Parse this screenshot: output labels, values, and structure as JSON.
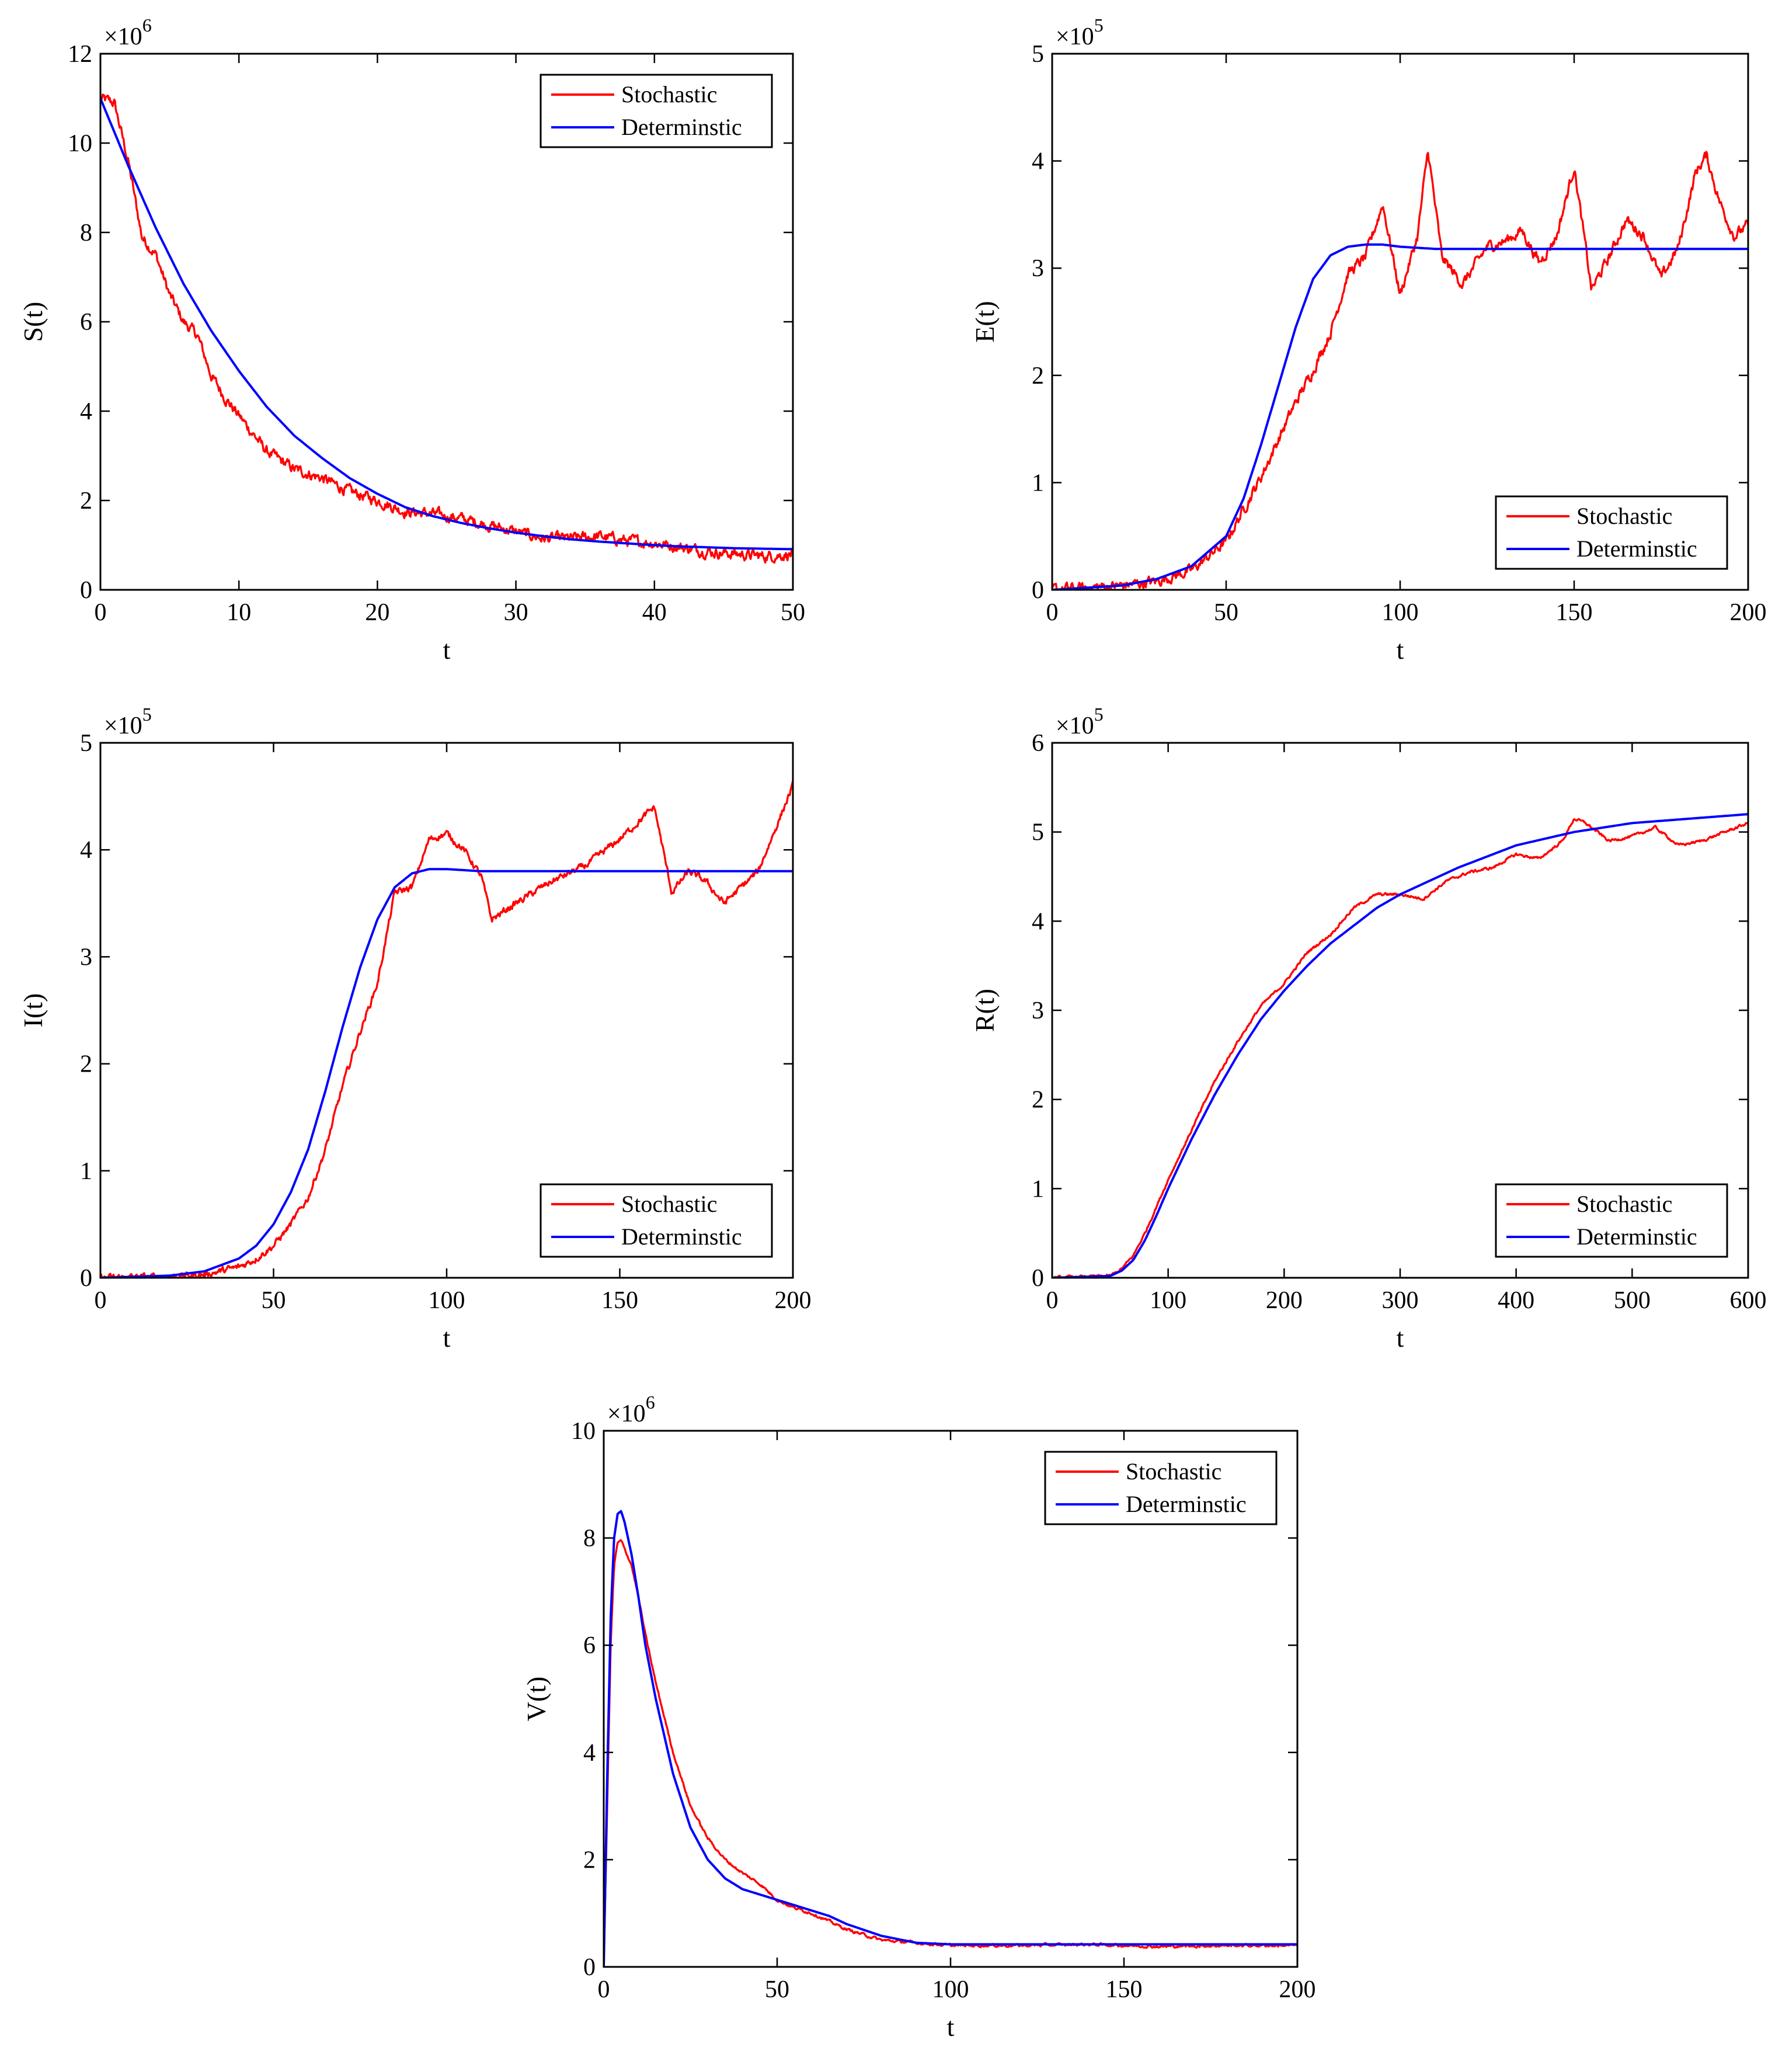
{
  "colors": {
    "stochastic": "#ff0000",
    "deterministic": "#0000ff",
    "axes": "#000000"
  },
  "chart_data": [
    {
      "type": "line",
      "id": "S",
      "xlabel": "t",
      "ylabel": "S(t)",
      "multiplier": {
        "base": "×10",
        "exp": "6"
      },
      "xlim": [
        0,
        50
      ],
      "ylim": [
        0,
        12
      ],
      "xticks": [
        0,
        10,
        20,
        30,
        40,
        50
      ],
      "yticks": [
        0,
        2,
        4,
        6,
        8,
        10,
        12
      ],
      "legend": {
        "position": "top-right",
        "entries": [
          "Stochastic",
          "Determinstic"
        ]
      },
      "series": [
        {
          "name": "Stochastic",
          "color": "#ff0000",
          "noise": "high",
          "x": [
            0,
            1,
            2,
            3,
            4,
            5,
            6,
            7,
            8,
            9,
            10,
            12,
            14,
            16,
            18,
            20,
            22,
            24,
            26,
            28,
            30,
            32,
            34,
            36,
            38,
            40,
            42,
            44,
            46,
            48,
            50
          ],
          "y": [
            11.0,
            10.9,
            9.6,
            7.9,
            7.5,
            6.6,
            6.0,
            5.7,
            4.8,
            4.3,
            3.9,
            3.1,
            2.7,
            2.5,
            2.2,
            2.0,
            1.75,
            1.7,
            1.6,
            1.45,
            1.3,
            1.15,
            1.15,
            1.2,
            1.1,
            1.05,
            0.95,
            0.85,
            0.8,
            0.75,
            0.8
          ]
        },
        {
          "name": "Determinstic",
          "color": "#0000ff",
          "x": [
            0,
            2,
            4,
            6,
            8,
            10,
            12,
            14,
            16,
            18,
            20,
            22,
            24,
            26,
            28,
            30,
            32,
            34,
            36,
            38,
            40,
            42,
            44,
            46,
            48,
            50
          ],
          "y": [
            11.0,
            9.5,
            8.1,
            6.85,
            5.8,
            4.9,
            4.1,
            3.45,
            2.95,
            2.5,
            2.15,
            1.85,
            1.65,
            1.5,
            1.38,
            1.28,
            1.2,
            1.13,
            1.08,
            1.04,
            1.0,
            0.97,
            0.95,
            0.93,
            0.92,
            0.91
          ]
        }
      ]
    },
    {
      "type": "line",
      "id": "E",
      "xlabel": "t",
      "ylabel": "E(t)",
      "multiplier": {
        "base": "×10",
        "exp": "5"
      },
      "xlim": [
        0,
        200
      ],
      "ylim": [
        0,
        5
      ],
      "xticks": [
        0,
        50,
        100,
        150,
        200
      ],
      "yticks": [
        0,
        1,
        2,
        3,
        4,
        5
      ],
      "legend": {
        "position": "bottom-right",
        "entries": [
          "Stochastic",
          "Determinstic"
        ]
      },
      "series": [
        {
          "name": "Stochastic",
          "color": "#ff0000",
          "noise": "high",
          "x": [
            0,
            20,
            30,
            40,
            50,
            55,
            60,
            65,
            70,
            75,
            80,
            85,
            90,
            95,
            100,
            105,
            108,
            112,
            118,
            125,
            130,
            135,
            140,
            145,
            150,
            155,
            160,
            165,
            170,
            175,
            180,
            185,
            188,
            192,
            196,
            200
          ],
          "y": [
            0.0,
            0.04,
            0.08,
            0.18,
            0.45,
            0.75,
            1.05,
            1.4,
            1.75,
            2.05,
            2.4,
            2.95,
            3.1,
            3.6,
            2.75,
            3.3,
            4.1,
            3.1,
            2.85,
            3.2,
            3.25,
            3.35,
            3.05,
            3.3,
            3.95,
            2.8,
            3.1,
            3.45,
            3.3,
            2.9,
            3.2,
            3.9,
            4.05,
            3.6,
            3.3,
            3.4
          ]
        },
        {
          "name": "Determinstic",
          "color": "#0000ff",
          "x": [
            0,
            20,
            30,
            40,
            50,
            55,
            60,
            65,
            70,
            75,
            80,
            85,
            90,
            95,
            100,
            110,
            120,
            140,
            160,
            180,
            200
          ],
          "y": [
            0.0,
            0.04,
            0.1,
            0.22,
            0.5,
            0.85,
            1.35,
            1.9,
            2.45,
            2.9,
            3.12,
            3.2,
            3.22,
            3.22,
            3.2,
            3.18,
            3.18,
            3.18,
            3.18,
            3.18,
            3.18
          ]
        }
      ]
    },
    {
      "type": "line",
      "id": "I",
      "xlabel": "t",
      "ylabel": "I(t)",
      "multiplier": {
        "base": "×10",
        "exp": "5"
      },
      "xlim": [
        0,
        200
      ],
      "ylim": [
        0,
        5
      ],
      "xticks": [
        0,
        50,
        100,
        150,
        200
      ],
      "yticks": [
        0,
        1,
        2,
        3,
        4,
        5
      ],
      "legend": {
        "position": "bottom-right",
        "entries": [
          "Stochastic",
          "Determinstic"
        ]
      },
      "series": [
        {
          "name": "Stochastic",
          "color": "#ff0000",
          "noise": "medium",
          "x": [
            0,
            20,
            30,
            40,
            45,
            50,
            55,
            60,
            65,
            70,
            75,
            80,
            85,
            90,
            95,
            100,
            105,
            110,
            113,
            120,
            130,
            140,
            150,
            160,
            165,
            170,
            175,
            180,
            185,
            190,
            195,
            200
          ],
          "y": [
            0.0,
            0.01,
            0.03,
            0.1,
            0.18,
            0.3,
            0.5,
            0.75,
            1.2,
            1.8,
            2.3,
            2.75,
            3.6,
            3.65,
            4.1,
            4.15,
            4.0,
            3.75,
            3.35,
            3.5,
            3.7,
            3.85,
            4.1,
            4.4,
            3.6,
            3.8,
            3.7,
            3.5,
            3.65,
            3.8,
            4.2,
            4.6
          ]
        },
        {
          "name": "Determinstic",
          "color": "#0000ff",
          "x": [
            0,
            20,
            30,
            40,
            45,
            50,
            55,
            60,
            65,
            70,
            75,
            80,
            85,
            90,
            95,
            100,
            105,
            110,
            120,
            140,
            160,
            180,
            200
          ],
          "y": [
            0.0,
            0.02,
            0.06,
            0.18,
            0.3,
            0.5,
            0.8,
            1.2,
            1.75,
            2.35,
            2.9,
            3.35,
            3.65,
            3.78,
            3.82,
            3.82,
            3.81,
            3.8,
            3.8,
            3.8,
            3.8,
            3.8,
            3.8
          ]
        }
      ]
    },
    {
      "type": "line",
      "id": "R",
      "xlabel": "t",
      "ylabel": "R(t)",
      "multiplier": {
        "base": "×10",
        "exp": "5"
      },
      "xlim": [
        0,
        600
      ],
      "ylim": [
        0,
        6
      ],
      "xticks": [
        0,
        100,
        200,
        300,
        400,
        500,
        600
      ],
      "yticks": [
        0,
        1,
        2,
        3,
        4,
        5,
        6
      ],
      "legend": {
        "position": "bottom-right",
        "entries": [
          "Stochastic",
          "Determinstic"
        ]
      },
      "series": [
        {
          "name": "Stochastic",
          "color": "#ff0000",
          "noise": "low",
          "x": [
            0,
            50,
            60,
            70,
            80,
            90,
            100,
            120,
            140,
            160,
            180,
            200,
            220,
            240,
            260,
            280,
            300,
            320,
            340,
            360,
            380,
            400,
            420,
            440,
            450,
            460,
            480,
            500,
            520,
            540,
            560,
            580,
            600
          ],
          "y": [
            0.0,
            0.02,
            0.1,
            0.25,
            0.5,
            0.8,
            1.1,
            1.65,
            2.2,
            2.65,
            3.05,
            3.3,
            3.65,
            3.85,
            4.15,
            4.3,
            4.3,
            4.25,
            4.45,
            4.55,
            4.6,
            4.75,
            4.7,
            4.9,
            5.15,
            5.1,
            4.9,
            4.95,
            5.05,
            4.85,
            4.9,
            5.0,
            5.1
          ]
        },
        {
          "name": "Determinstic",
          "color": "#0000ff",
          "x": [
            0,
            50,
            60,
            70,
            80,
            90,
            100,
            120,
            140,
            160,
            180,
            200,
            220,
            240,
            260,
            280,
            300,
            350,
            400,
            450,
            500,
            550,
            600
          ],
          "y": [
            0.0,
            0.02,
            0.08,
            0.2,
            0.42,
            0.7,
            1.0,
            1.55,
            2.05,
            2.5,
            2.9,
            3.22,
            3.5,
            3.75,
            3.95,
            4.15,
            4.3,
            4.6,
            4.85,
            5.0,
            5.1,
            5.15,
            5.2
          ]
        }
      ]
    },
    {
      "type": "line",
      "id": "V",
      "xlabel": "t",
      "ylabel": "V(t)",
      "multiplier": {
        "base": "×10",
        "exp": "6"
      },
      "xlim": [
        0,
        200
      ],
      "ylim": [
        0,
        10
      ],
      "xticks": [
        0,
        50,
        100,
        150,
        200
      ],
      "yticks": [
        0,
        2,
        4,
        6,
        8,
        10
      ],
      "legend": {
        "position": "top-right",
        "entries": [
          "Stochastic",
          "Determinstic"
        ]
      },
      "series": [
        {
          "name": "Stochastic",
          "color": "#ff0000",
          "noise": "low",
          "x": [
            0,
            1,
            2,
            3,
            4,
            5,
            6,
            8,
            10,
            12,
            15,
            20,
            25,
            30,
            35,
            40,
            45,
            50,
            55,
            60,
            65,
            70,
            80,
            90,
            100,
            120,
            140,
            160,
            180,
            200
          ],
          "y": [
            0.0,
            3.0,
            6.0,
            7.5,
            7.9,
            7.95,
            7.8,
            7.5,
            6.9,
            6.2,
            5.3,
            4.0,
            3.0,
            2.4,
            2.0,
            1.75,
            1.55,
            1.25,
            1.1,
            1.0,
            0.85,
            0.7,
            0.5,
            0.45,
            0.4,
            0.4,
            0.42,
            0.38,
            0.4,
            0.4
          ]
        },
        {
          "name": "Determinstic",
          "color": "#0000ff",
          "x": [
            0,
            1,
            2,
            3,
            4,
            5,
            6,
            8,
            10,
            12,
            15,
            20,
            25,
            30,
            35,
            40,
            45,
            50,
            55,
            60,
            65,
            70,
            80,
            90,
            100,
            120,
            140,
            160,
            180,
            200
          ],
          "y": [
            0.0,
            3.5,
            6.5,
            8.0,
            8.45,
            8.5,
            8.3,
            7.7,
            6.9,
            6.0,
            5.0,
            3.6,
            2.6,
            2.0,
            1.65,
            1.45,
            1.35,
            1.25,
            1.15,
            1.05,
            0.95,
            0.8,
            0.58,
            0.45,
            0.42,
            0.42,
            0.42,
            0.42,
            0.42,
            0.42
          ]
        }
      ]
    }
  ]
}
